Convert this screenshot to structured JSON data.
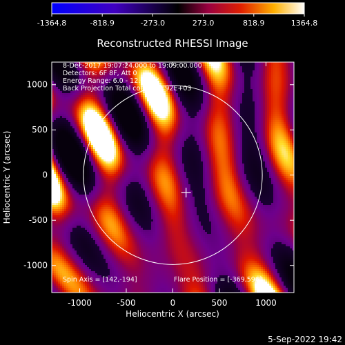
{
  "chart_data": {
    "type": "heatmap",
    "title": "Reconstructed RHESSI Image",
    "xlabel": "Heliocentric X (arcsec)",
    "ylabel": "Heliocentric Y (arcsec)",
    "xlim": [
      -1300,
      1300
    ],
    "ylim": [
      -1300,
      1250
    ],
    "x_ticks": [
      -1000,
      -500,
      0,
      500,
      1000
    ],
    "x_tick_labels": [
      "-1000",
      "-500",
      "0",
      "500",
      "1000"
    ],
    "y_ticks": [
      -1000,
      -500,
      0,
      500,
      1000
    ],
    "y_tick_labels": [
      "-1000",
      "-500",
      "0",
      "500",
      "1000"
    ],
    "colorbar": {
      "range": [
        -1364.8,
        1364.8
      ],
      "tick_values": [
        -1364.8,
        -818.9,
        -273.0,
        273.0,
        818.9,
        1364.8
      ],
      "tick_labels": [
        "-1364.8",
        "-818.9",
        "-273.0",
        "273.0",
        "818.9",
        "1364.8"
      ]
    },
    "annotations": [
      "8-Dec-2017 19:07:24.000 to 19:09:00.000",
      "Detectors: 6F 8F, Att 0",
      "Energy Range: 6.0 - 12.0 keV",
      "Back Projection    Total counts: 4.92E+03"
    ],
    "footer_left": "Spin Axis = [142,-194]",
    "footer_right": "Flare Position = [-369,596]",
    "solar_disk": {
      "center": [
        0,
        0
      ],
      "radius_arcsec": 960
    },
    "marker": {
      "type": "cross",
      "position": [
        142,
        -194
      ]
    },
    "grid": false
  },
  "timestamp": "5-Sep-2022 19:42"
}
